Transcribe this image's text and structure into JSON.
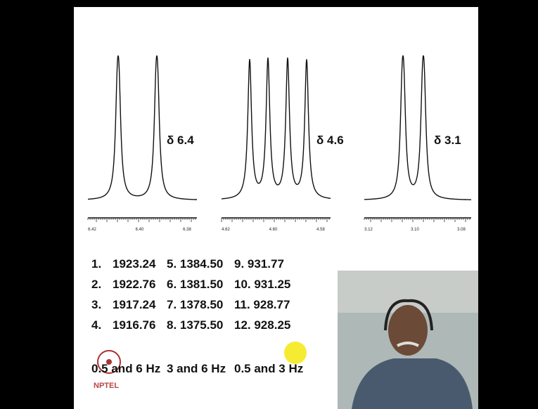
{
  "spectra": [
    {
      "label": "δ 6.4",
      "axis_labels": [
        "6.42",
        "6.40",
        "6.38"
      ]
    },
    {
      "label": "δ 4.6",
      "axis_labels": [
        "4.62",
        "4.60",
        "4.58"
      ]
    },
    {
      "label": "δ 3.1",
      "axis_labels": [
        "3.12",
        "3.10",
        "3.08"
      ]
    }
  ],
  "list": {
    "rows": [
      [
        "1.",
        "1923.24",
        "5. 1384.50",
        "9. 931.77"
      ],
      [
        "2.",
        "1922.76",
        "6. 1381.50",
        "10. 931.25"
      ],
      [
        "3.",
        "1917.24",
        "7. 1378.50",
        "11. 928.77"
      ],
      [
        "4.",
        "1916.76",
        "8. 1375.50",
        "12. 928.25"
      ]
    ]
  },
  "answers": [
    "0.5 and 6 Hz",
    "3 and 6 Hz",
    "0.5 and 3 Hz"
  ],
  "logo": "NPTEL"
}
